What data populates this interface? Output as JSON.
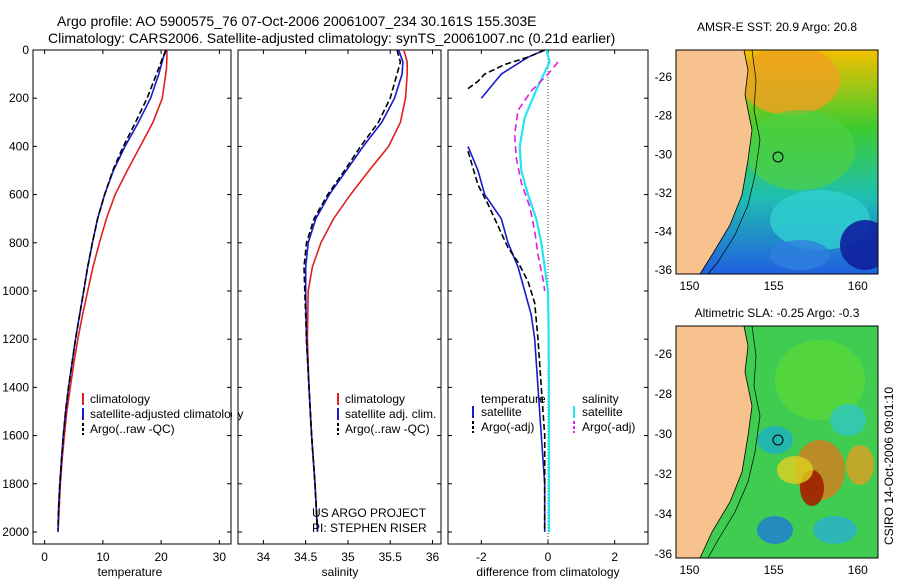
{
  "header": {
    "line1": "Argo profile: AO 5900575_76 07-Oct-2006 20061007_234 30.161S 155.303E",
    "line2": "Climatology: CARS2006. Satellite-adjusted climatology: synTS_20061007.nc (0.21d earlier)"
  },
  "credit": "CSIRO 14-Oct-2006 09:01:10",
  "project": {
    "line1": "US ARGO PROJECT",
    "line2": "PI: STEPHEN RISER"
  },
  "colors": {
    "climatology": "#e02020",
    "satellite": "#1a1acc",
    "argo": "#000000",
    "sat_salinity": "#22e6f0",
    "argo_salinity": "#e020e0",
    "land": "#f7c28e"
  },
  "chart_data": [
    {
      "type": "line",
      "xlabel": "temperature",
      "xlim": [
        -2,
        32
      ],
      "ylim": [
        2050,
        0
      ],
      "xticks": [
        0,
        10,
        20,
        30
      ],
      "yticks": [
        0,
        200,
        400,
        600,
        800,
        1000,
        1200,
        1400,
        1600,
        1800,
        2000
      ],
      "legend": [
        "climatology",
        "satellite-adjusted climatology",
        "Argo(..raw -QC)"
      ],
      "series": [
        {
          "name": "climatology",
          "color": "#e02020",
          "dash": "",
          "points": [
            [
              21.0,
              0
            ],
            [
              21.0,
              30
            ],
            [
              20.9,
              80
            ],
            [
              20.2,
              200
            ],
            [
              18.6,
              300
            ],
            [
              16.4,
              400
            ],
            [
              14.2,
              500
            ],
            [
              12.1,
              600
            ],
            [
              10.6,
              700
            ],
            [
              9.4,
              800
            ],
            [
              8.3,
              900
            ],
            [
              7.4,
              1000
            ],
            [
              6.5,
              1100
            ],
            [
              5.7,
              1200
            ],
            [
              5.0,
              1300
            ],
            [
              4.4,
              1400
            ],
            [
              3.8,
              1500
            ],
            [
              3.4,
              1600
            ],
            [
              3.0,
              1700
            ],
            [
              2.7,
              1800
            ],
            [
              2.5,
              1900
            ],
            [
              2.3,
              2000
            ]
          ]
        },
        {
          "name": "satellite-adjusted climatology",
          "color": "#1a1acc",
          "dash": "",
          "points": [
            [
              20.9,
              0
            ],
            [
              20.4,
              30
            ],
            [
              19.6,
              100
            ],
            [
              18.2,
              200
            ],
            [
              16.1,
              300
            ],
            [
              13.8,
              400
            ],
            [
              11.8,
              500
            ],
            [
              10.3,
              600
            ],
            [
              9.1,
              700
            ],
            [
              8.2,
              800
            ],
            [
              7.4,
              900
            ],
            [
              6.7,
              1000
            ],
            [
              6.0,
              1100
            ],
            [
              5.3,
              1200
            ],
            [
              4.7,
              1300
            ],
            [
              4.1,
              1400
            ],
            [
              3.6,
              1500
            ],
            [
              3.2,
              1600
            ],
            [
              2.9,
              1700
            ],
            [
              2.6,
              1800
            ],
            [
              2.4,
              1900
            ],
            [
              2.3,
              2000
            ]
          ]
        },
        {
          "name": "Argo(..raw -QC)",
          "color": "#000000",
          "dash": "6,3",
          "points": [
            [
              20.8,
              0
            ],
            [
              20.3,
              30
            ],
            [
              19.2,
              100
            ],
            [
              17.6,
              200
            ],
            [
              15.6,
              300
            ],
            [
              13.5,
              400
            ],
            [
              11.7,
              500
            ],
            [
              10.3,
              600
            ],
            [
              9.1,
              700
            ],
            [
              8.2,
              800
            ],
            [
              7.4,
              900
            ],
            [
              6.7,
              1000
            ],
            [
              6.0,
              1100
            ],
            [
              5.3,
              1200
            ],
            [
              4.7,
              1300
            ],
            [
              4.1,
              1400
            ],
            [
              3.6,
              1500
            ],
            [
              3.2,
              1600
            ],
            [
              2.9,
              1700
            ],
            [
              2.6,
              1800
            ],
            [
              2.4,
              1900
            ],
            [
              2.3,
              1990
            ]
          ]
        }
      ]
    },
    {
      "type": "line",
      "xlabel": "salinity",
      "xlim": [
        33.7,
        36.1
      ],
      "ylim": [
        2050,
        0
      ],
      "xticks": [
        34,
        34.5,
        35,
        35.5,
        36
      ],
      "legend": [
        "climatology",
        "satellite adj. clim.",
        "Argo(..raw -QC)"
      ],
      "series": [
        {
          "name": "climatology",
          "color": "#e02020",
          "dash": "",
          "points": [
            [
              35.66,
              0
            ],
            [
              35.7,
              50
            ],
            [
              35.7,
              100
            ],
            [
              35.68,
              200
            ],
            [
              35.62,
              300
            ],
            [
              35.48,
              400
            ],
            [
              35.25,
              500
            ],
            [
              35.03,
              600
            ],
            [
              34.83,
              700
            ],
            [
              34.68,
              800
            ],
            [
              34.58,
              900
            ],
            [
              34.53,
              1000
            ],
            [
              34.52,
              1200
            ],
            [
              34.54,
              1400
            ],
            [
              34.57,
              1600
            ],
            [
              34.61,
              1800
            ],
            [
              34.64,
              2000
            ]
          ]
        },
        {
          "name": "satellite adj. clim.",
          "color": "#1a1acc",
          "dash": "",
          "points": [
            [
              35.6,
              0
            ],
            [
              35.65,
              50
            ],
            [
              35.64,
              100
            ],
            [
              35.55,
              200
            ],
            [
              35.4,
              300
            ],
            [
              35.18,
              400
            ],
            [
              34.98,
              500
            ],
            [
              34.78,
              600
            ],
            [
              34.62,
              700
            ],
            [
              34.53,
              800
            ],
            [
              34.5,
              900
            ],
            [
              34.5,
              1000
            ],
            [
              34.51,
              1200
            ],
            [
              34.54,
              1400
            ],
            [
              34.57,
              1600
            ],
            [
              34.61,
              1800
            ],
            [
              34.64,
              2000
            ]
          ]
        },
        {
          "name": "Argo(..raw -QC)",
          "color": "#000000",
          "dash": "6,3",
          "points": [
            [
              35.58,
              0
            ],
            [
              35.62,
              50
            ],
            [
              35.58,
              100
            ],
            [
              35.5,
              200
            ],
            [
              35.36,
              300
            ],
            [
              35.15,
              400
            ],
            [
              34.96,
              500
            ],
            [
              34.76,
              600
            ],
            [
              34.6,
              700
            ],
            [
              34.51,
              800
            ],
            [
              34.48,
              900
            ],
            [
              34.49,
              1000
            ],
            [
              34.51,
              1200
            ],
            [
              34.54,
              1400
            ],
            [
              34.57,
              1600
            ],
            [
              34.61,
              1800
            ],
            [
              34.64,
              1990
            ]
          ]
        }
      ]
    },
    {
      "type": "line",
      "xlabel": "difference from climatology",
      "xlim": [
        -3.0,
        3.0
      ],
      "ylim": [
        2050,
        0
      ],
      "xticks": [
        -2,
        0,
        2
      ],
      "legend": [
        "temperature",
        "satellite",
        "Argo(-adj)",
        "salinity",
        "satellite",
        "Argo(-adj)"
      ],
      "series": [
        {
          "name": "satellite",
          "color": "#1a1acc",
          "dash": "",
          "points": [
            [
              -0.1,
              0
            ],
            [
              -0.6,
              30
            ],
            [
              -1.4,
              100
            ],
            [
              -2.0,
              200
            ]
          ]
        },
        {
          "name": "satellite",
          "color": "#1a1acc",
          "dash": "",
          "points": [
            [
              -2.4,
              400
            ],
            [
              -2.1,
              500
            ],
            [
              -1.9,
              600
            ],
            [
              -1.4,
              700
            ],
            [
              -1.2,
              800
            ],
            [
              -0.9,
              900
            ],
            [
              -0.7,
              1000
            ],
            [
              -0.5,
              1100
            ],
            [
              -0.4,
              1200
            ],
            [
              -0.3,
              1400
            ],
            [
              -0.2,
              1600
            ],
            [
              -0.1,
              1800
            ],
            [
              -0.1,
              2000
            ]
          ]
        },
        {
          "name": "Argo(-adj)",
          "color": "#000000",
          "dash": "6,3",
          "points": [
            [
              -0.1,
              0
            ],
            [
              -0.6,
              30
            ],
            [
              -1.3,
              60
            ],
            [
              -1.9,
              100
            ],
            [
              -2.1,
              130
            ],
            [
              -2.4,
              160
            ]
          ]
        },
        {
          "name": "Argo(-adj)",
          "color": "#000000",
          "dash": "6,3",
          "points": [
            [
              -2.4,
              420
            ],
            [
              -2.1,
              560
            ],
            [
              -1.8,
              640
            ],
            [
              -1.4,
              760
            ],
            [
              -1.2,
              820
            ],
            [
              -0.9,
              880
            ],
            [
              -0.6,
              960
            ],
            [
              -0.4,
              1050
            ],
            [
              -0.3,
              1200
            ],
            [
              -0.2,
              1400
            ],
            [
              -0.1,
              1600
            ],
            [
              -0.1,
              1800
            ],
            [
              -0.1,
              1990
            ]
          ]
        },
        {
          "name": "satellite",
          "color": "#22e6f0",
          "dash": "",
          "points": [
            [
              -0.05,
              0
            ],
            [
              0.05,
              50
            ],
            [
              -0.3,
              150
            ],
            [
              -0.7,
              280
            ],
            [
              -0.85,
              400
            ],
            [
              -0.8,
              500
            ],
            [
              -0.6,
              600
            ],
            [
              -0.35,
              700
            ],
            [
              -0.2,
              800
            ],
            [
              -0.1,
              900
            ],
            [
              0.0,
              1000
            ],
            [
              0.02,
              1200
            ],
            [
              0.03,
              1500
            ],
            [
              0.03,
              1800
            ],
            [
              0.03,
              2000
            ]
          ]
        },
        {
          "name": "Argo(-adj)",
          "color": "#e020e0",
          "dash": "7,4",
          "points": [
            [
              0.3,
              50
            ],
            [
              0.0,
              100
            ],
            [
              -0.5,
              170
            ],
            [
              -0.9,
              250
            ],
            [
              -1.0,
              350
            ],
            [
              -0.95,
              450
            ],
            [
              -0.8,
              550
            ],
            [
              -0.55,
              650
            ],
            [
              -0.4,
              750
            ],
            [
              -0.3,
              850
            ],
            [
              -0.15,
              950
            ],
            [
              -0.1,
              1000
            ]
          ]
        }
      ]
    },
    {
      "type": "heatmap",
      "title": "AMSR-E SST: 20.9 Argo: 20.8",
      "xlim": [
        149.2,
        161.2
      ],
      "ylim": [
        -36.2,
        -24.6
      ],
      "xticks": [
        150,
        155,
        160
      ],
      "yticks": [
        -26,
        -28,
        -30,
        -32,
        -34,
        -36
      ],
      "marker": [
        155.3,
        -30.16
      ]
    },
    {
      "type": "heatmap",
      "title": "Altimetric SLA: -0.25 Argo: -0.3",
      "xlim": [
        149.2,
        161.2
      ],
      "ylim": [
        -36.2,
        -24.6
      ],
      "xticks": [
        150,
        155,
        160
      ],
      "yticks": [
        -26,
        -28,
        -30,
        -32,
        -34,
        -36
      ],
      "marker": [
        155.3,
        -30.16
      ]
    }
  ]
}
